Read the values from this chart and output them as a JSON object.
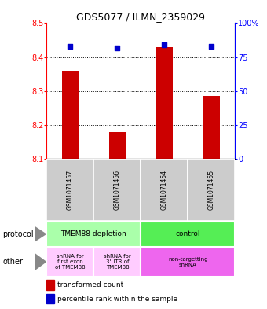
{
  "title": "GDS5077 / ILMN_2359029",
  "samples": [
    "GSM1071457",
    "GSM1071456",
    "GSM1071454",
    "GSM1071455"
  ],
  "bar_values": [
    8.36,
    8.18,
    8.43,
    8.285
  ],
  "bar_bottom": 8.1,
  "percentile_values": [
    83,
    82,
    84,
    83
  ],
  "ylim_left": [
    8.1,
    8.5
  ],
  "ylim_right": [
    0,
    100
  ],
  "yticks_left": [
    8.1,
    8.2,
    8.3,
    8.4,
    8.5
  ],
  "yticks_right": [
    0,
    25,
    50,
    75,
    100
  ],
  "ytick_labels_right": [
    "0",
    "25",
    "50",
    "75",
    "100%"
  ],
  "bar_color": "#cc0000",
  "dot_color": "#0000cc",
  "sample_box_color": "#cccccc",
  "protocol_row": [
    {
      "label": "TMEM88 depletion",
      "cols": [
        0,
        1
      ],
      "color": "#aaffaa"
    },
    {
      "label": "control",
      "cols": [
        2,
        3
      ],
      "color": "#55ee55"
    }
  ],
  "other_row": [
    {
      "label": "shRNA for\nfirst exon\nof TMEM88",
      "cols": [
        0
      ],
      "color": "#ffccff"
    },
    {
      "label": "shRNA for\n3'UTR of\nTMEM88",
      "cols": [
        1
      ],
      "color": "#ffccff"
    },
    {
      "label": "non-targetting\nshRNA",
      "cols": [
        2,
        3
      ],
      "color": "#ee66ee"
    }
  ],
  "legend_bar_label": "transformed count",
  "legend_dot_label": "percentile rank within the sample"
}
